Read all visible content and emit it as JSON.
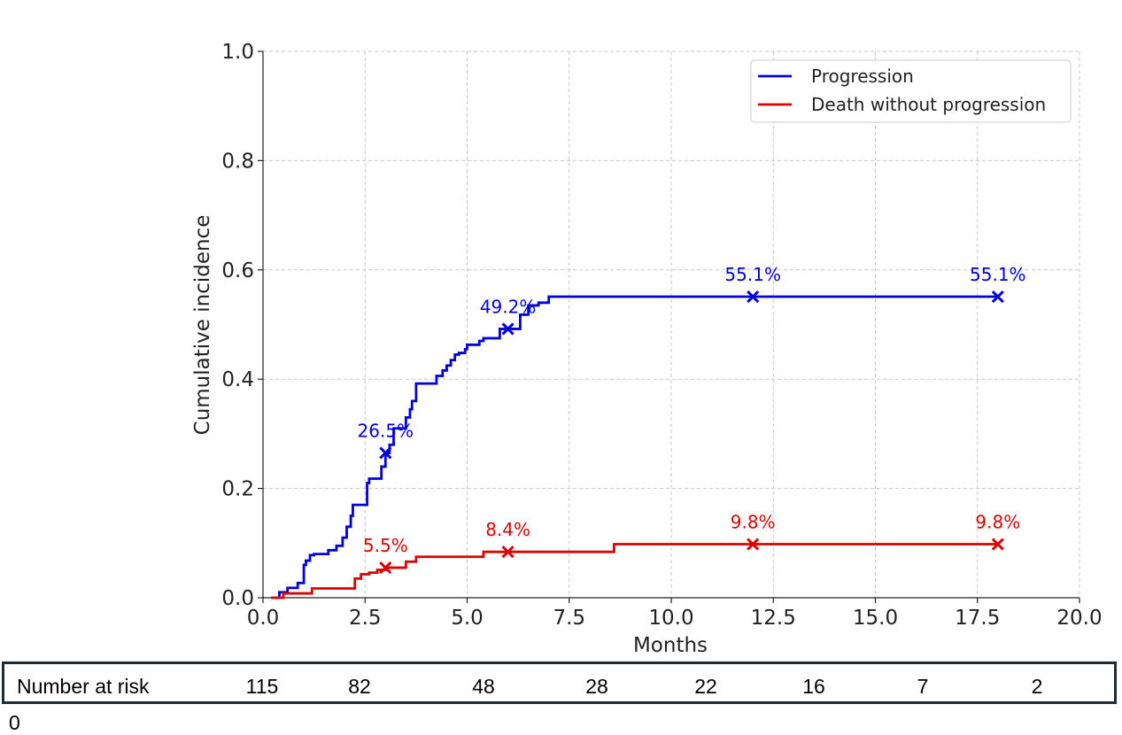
{
  "chart_data": {
    "type": "line",
    "title": "",
    "xlabel": "Months",
    "ylabel": "Cumulative incidence",
    "xlim": [
      0,
      20
    ],
    "ylim": [
      0,
      1
    ],
    "xticks": [
      0,
      2.5,
      5,
      7.5,
      10,
      12.5,
      15,
      17.5,
      20
    ],
    "xtick_labels": [
      "0.0",
      "2.5",
      "5.0",
      "7.5",
      "10.0",
      "12.5",
      "15.0",
      "17.5",
      "20.0"
    ],
    "yticks": [
      0,
      0.2,
      0.4,
      0.6,
      0.8,
      1.0
    ],
    "ytick_labels": [
      "0.0",
      "0.2",
      "0.4",
      "0.6",
      "0.8",
      "1.0"
    ],
    "grid": true,
    "legend_position": "top-right",
    "series": [
      {
        "name": "Progression",
        "color": "#0000dd",
        "step": true,
        "x": [
          0.4,
          0.6,
          0.85,
          1.0,
          1.05,
          1.15,
          1.25,
          1.6,
          1.8,
          1.95,
          2.05,
          2.15,
          2.2,
          2.3,
          2.55,
          2.6,
          2.9,
          3.0,
          3.1,
          3.2,
          3.5,
          3.6,
          3.65,
          3.75,
          4.25,
          4.4,
          4.5,
          4.6,
          4.7,
          4.8,
          4.95,
          5.0,
          5.3,
          5.4,
          5.8,
          6.0,
          6.3,
          6.5,
          6.75,
          7.0,
          18.0
        ],
        "y": [
          0.01,
          0.018,
          0.027,
          0.06,
          0.068,
          0.078,
          0.08,
          0.087,
          0.095,
          0.11,
          0.13,
          0.15,
          0.17,
          0.17,
          0.21,
          0.218,
          0.24,
          0.265,
          0.28,
          0.31,
          0.33,
          0.345,
          0.36,
          0.392,
          0.406,
          0.416,
          0.425,
          0.435,
          0.445,
          0.448,
          0.455,
          0.463,
          0.47,
          0.475,
          0.492,
          0.492,
          0.518,
          0.535,
          0.54,
          0.551,
          0.551
        ],
        "markers": [
          {
            "x": 3,
            "y": 0.265,
            "label": "26.5%"
          },
          {
            "x": 6,
            "y": 0.492,
            "label": "49.2%"
          },
          {
            "x": 12,
            "y": 0.551,
            "label": "55.1%"
          },
          {
            "x": 18,
            "y": 0.551,
            "label": "55.1%"
          }
        ]
      },
      {
        "name": "Death without progression",
        "color": "#dd0000",
        "step": true,
        "x": [
          0.5,
          1.2,
          2.25,
          2.4,
          2.6,
          2.8,
          3.0,
          3.5,
          3.75,
          5.4,
          6.0,
          8.6,
          18.0
        ],
        "y": [
          0.008,
          0.017,
          0.035,
          0.043,
          0.046,
          0.051,
          0.055,
          0.066,
          0.075,
          0.084,
          0.084,
          0.098,
          0.098
        ],
        "markers": [
          {
            "x": 3,
            "y": 0.055,
            "label": "5.5%"
          },
          {
            "x": 6,
            "y": 0.084,
            "label": "8.4%"
          },
          {
            "x": 12,
            "y": 0.098,
            "label": "9.8%"
          },
          {
            "x": 18,
            "y": 0.098,
            "label": "9.8%"
          }
        ]
      }
    ]
  },
  "risk_table": {
    "label": "Number at risk",
    "values": [
      "115",
      "82",
      "48",
      "28",
      "22",
      "16",
      "7",
      "2"
    ],
    "overflow": "0"
  }
}
